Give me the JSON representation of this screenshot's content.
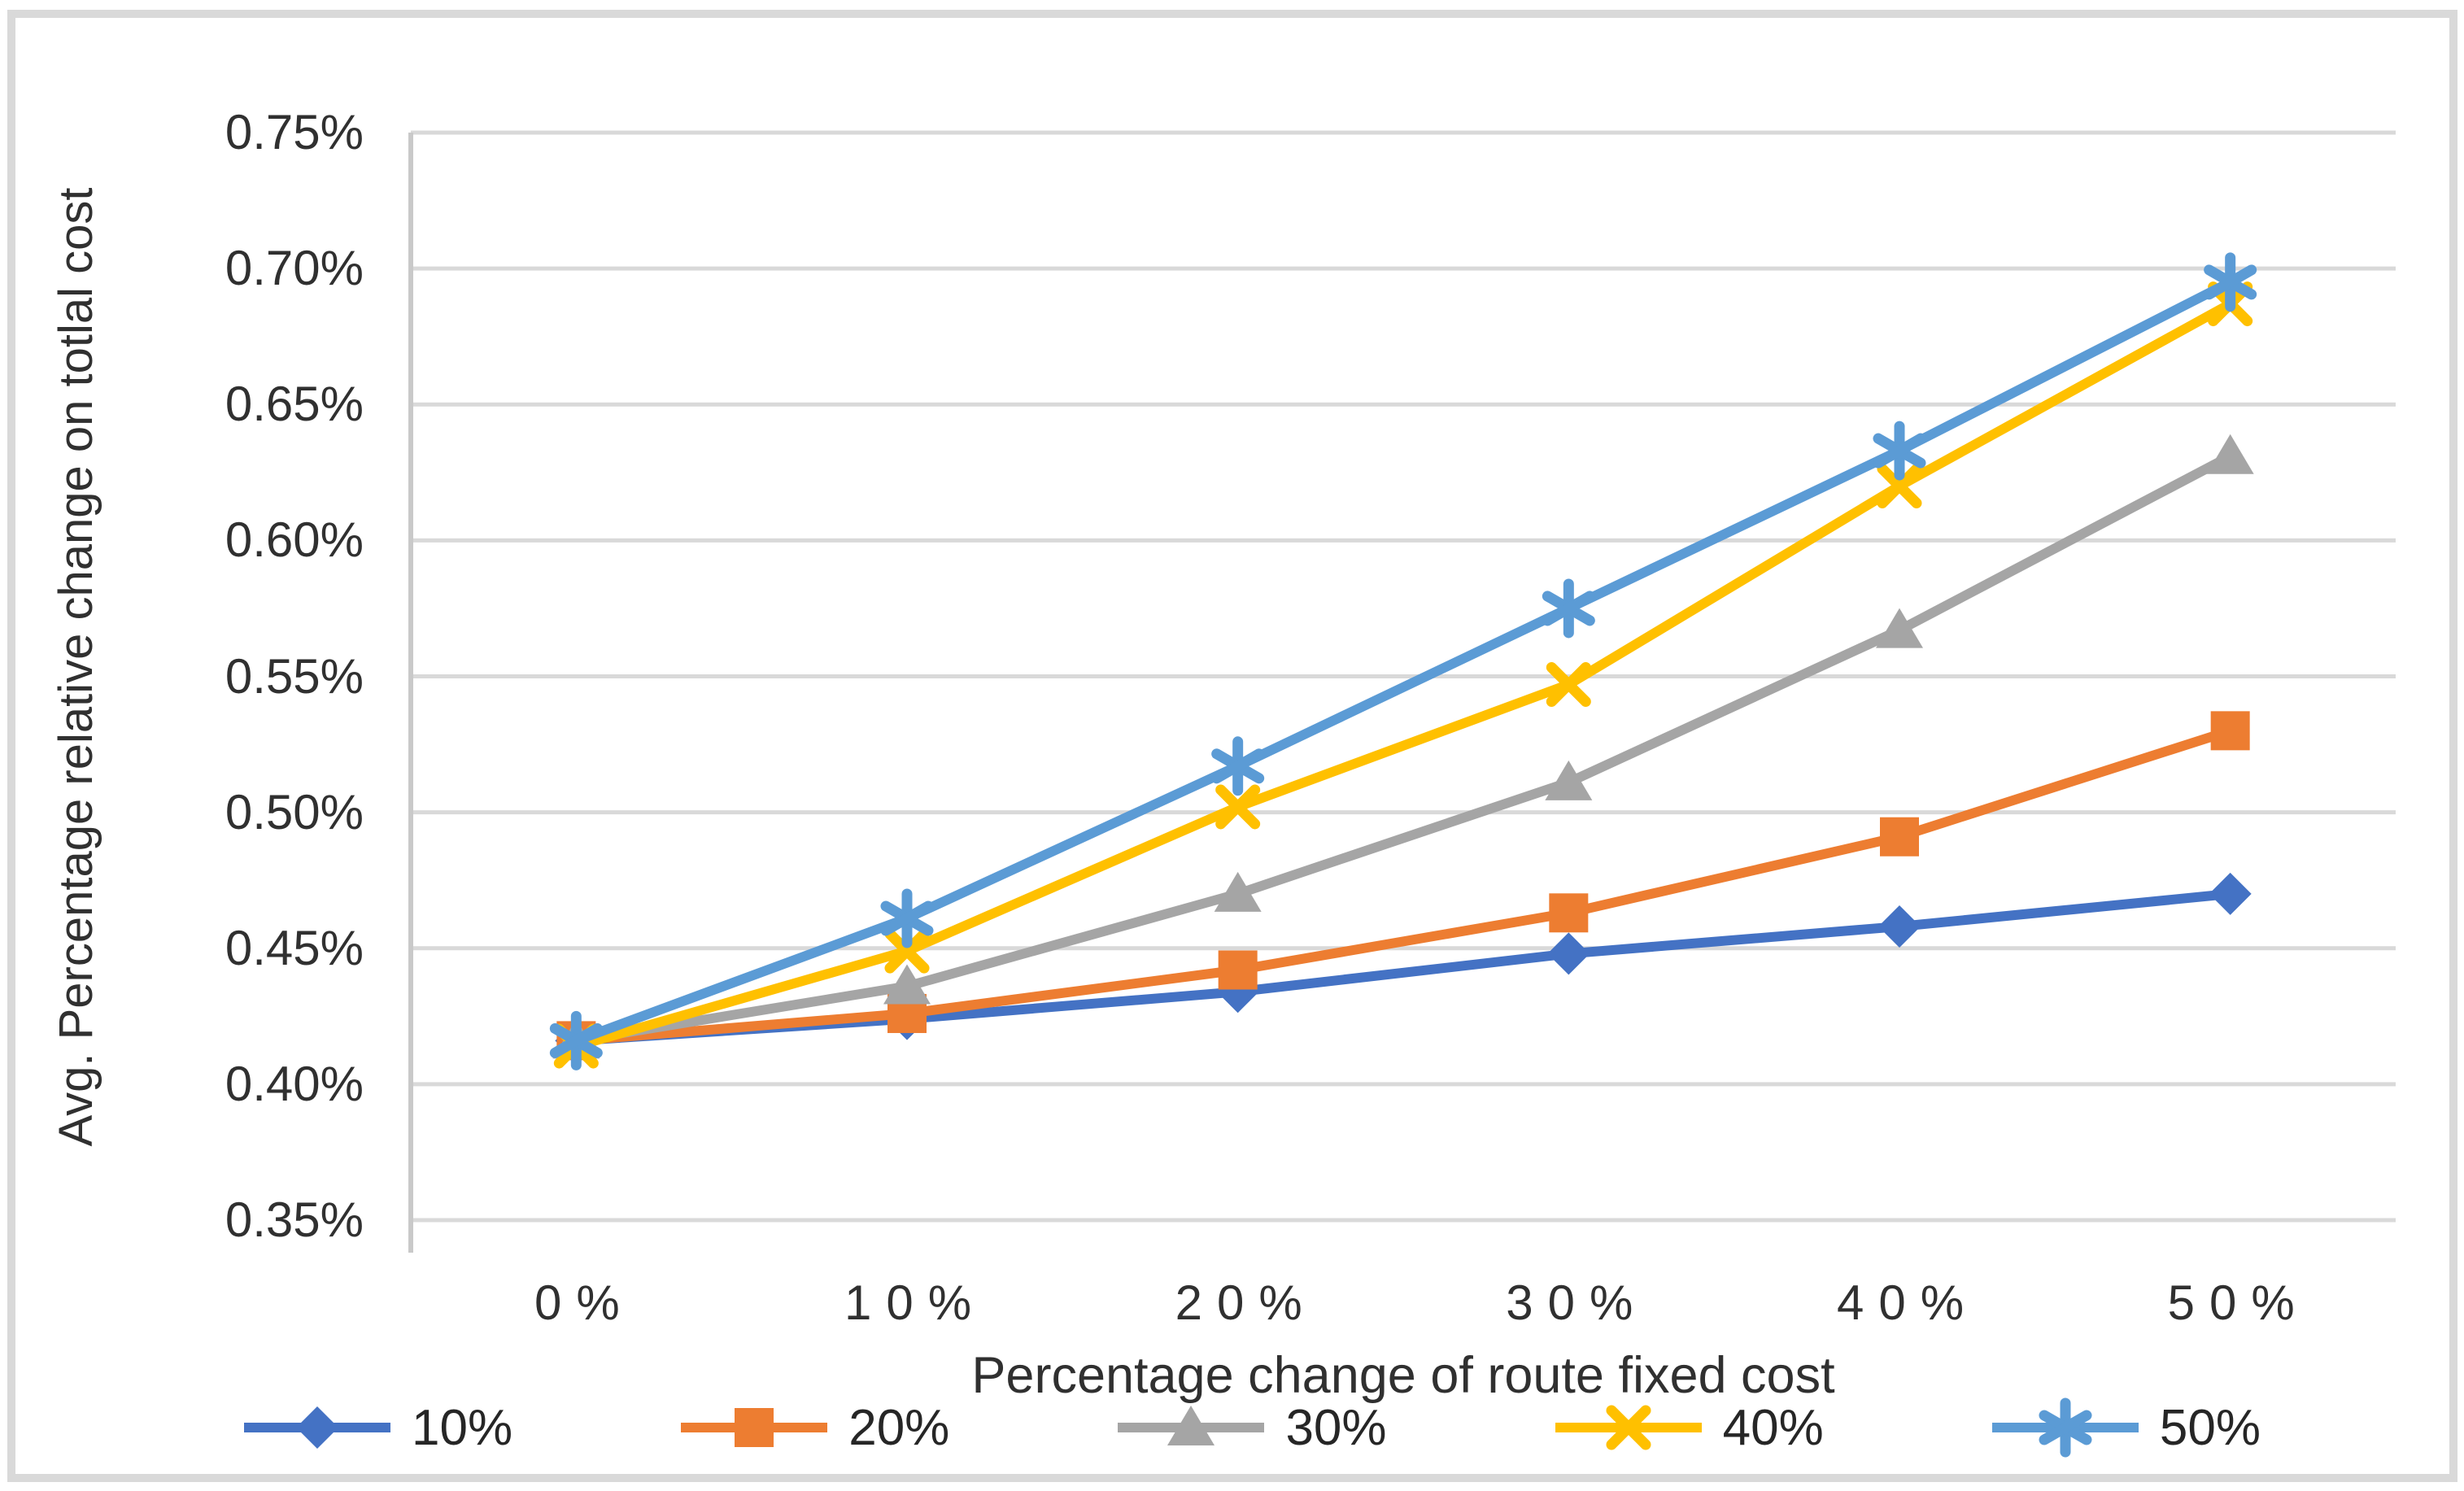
{
  "chart_data": {
    "type": "line",
    "title": "",
    "xlabel": "Percentage change of route fixed cost",
    "ylabel": "Avg. Percentage relative change on totlal cost",
    "categories": [
      "0%",
      "10%",
      "20%",
      "30%",
      "40%",
      "50%"
    ],
    "y_tick_labels": [
      "0.35%",
      "0.40%",
      "0.45%",
      "0.50%",
      "0.55%",
      "0.60%",
      "0.65%",
      "0.70%",
      "0.75%"
    ],
    "ylim": [
      0.35,
      0.75
    ],
    "y_tick_step": 0.05,
    "y_unit": "percent",
    "grid": "horizontal",
    "legend_position": "bottom",
    "series": [
      {
        "name": "10%",
        "marker": "diamond",
        "color": "#4472C4",
        "values": [
          0.416,
          0.424,
          0.434,
          0.448,
          0.458,
          0.47
        ]
      },
      {
        "name": "20%",
        "marker": "square",
        "color": "#ED7D31",
        "values": [
          0.416,
          0.426,
          0.442,
          0.463,
          0.491,
          0.53
        ]
      },
      {
        "name": "30%",
        "marker": "triangle",
        "color": "#A5A5A5",
        "values": [
          0.416,
          0.436,
          0.47,
          0.511,
          0.567,
          0.631
        ]
      },
      {
        "name": "40%",
        "marker": "x",
        "color": "#FFC000",
        "values": [
          0.414,
          0.449,
          0.502,
          0.547,
          0.62,
          0.687
        ]
      },
      {
        "name": "50%",
        "marker": "asterisk",
        "color": "#5B9BD5",
        "values": [
          0.416,
          0.461,
          0.517,
          0.575,
          0.633,
          0.695
        ]
      }
    ],
    "colors": {
      "gridline": "#D9D9D9",
      "axis_line": "#C9C9C9",
      "text": "#303030",
      "frame_border": "#D9D9D9",
      "background": "#FFFFFF"
    }
  }
}
